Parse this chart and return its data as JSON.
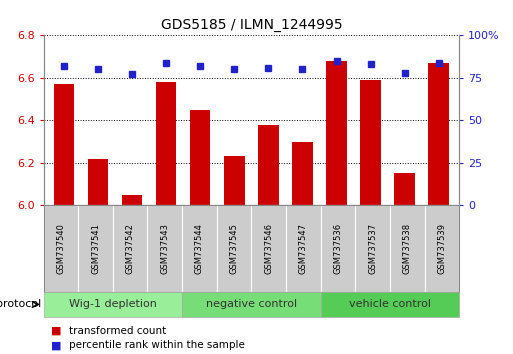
{
  "title": "GDS5185 / ILMN_1244995",
  "samples": [
    "GSM737540",
    "GSM737541",
    "GSM737542",
    "GSM737543",
    "GSM737544",
    "GSM737545",
    "GSM737546",
    "GSM737547",
    "GSM737536",
    "GSM737537",
    "GSM737538",
    "GSM737539"
  ],
  "transformed_count": [
    6.57,
    6.22,
    6.05,
    6.58,
    6.45,
    6.23,
    6.38,
    6.3,
    6.68,
    6.59,
    6.15,
    6.67
  ],
  "percentile_rank": [
    82,
    80,
    77,
    84,
    82,
    80,
    81,
    80,
    85,
    83,
    78,
    84
  ],
  "ylim_left": [
    6.0,
    6.8
  ],
  "ylim_right": [
    0,
    100
  ],
  "yticks_left": [
    6.0,
    6.2,
    6.4,
    6.6,
    6.8
  ],
  "yticks_right": [
    0,
    25,
    50,
    75,
    100
  ],
  "ytick_labels_right": [
    "0",
    "25",
    "50",
    "75",
    "100%"
  ],
  "bar_color": "#cc0000",
  "dot_color": "#2222cc",
  "groups": [
    {
      "label": "Wig-1 depletion",
      "start": 0,
      "end": 4,
      "color": "#99ee99"
    },
    {
      "label": "negative control",
      "start": 4,
      "end": 8,
      "color": "#77dd77"
    },
    {
      "label": "vehicle control",
      "start": 8,
      "end": 12,
      "color": "#55cc55"
    }
  ],
  "protocol_label": "protocol",
  "legend_red": "transformed count",
  "legend_blue": "percentile rank within the sample",
  "tick_label_color_left": "#cc0000",
  "tick_label_color_right": "#2222cc",
  "sample_box_color": "#cccccc",
  "sample_box_edge": "#aaaaaa"
}
